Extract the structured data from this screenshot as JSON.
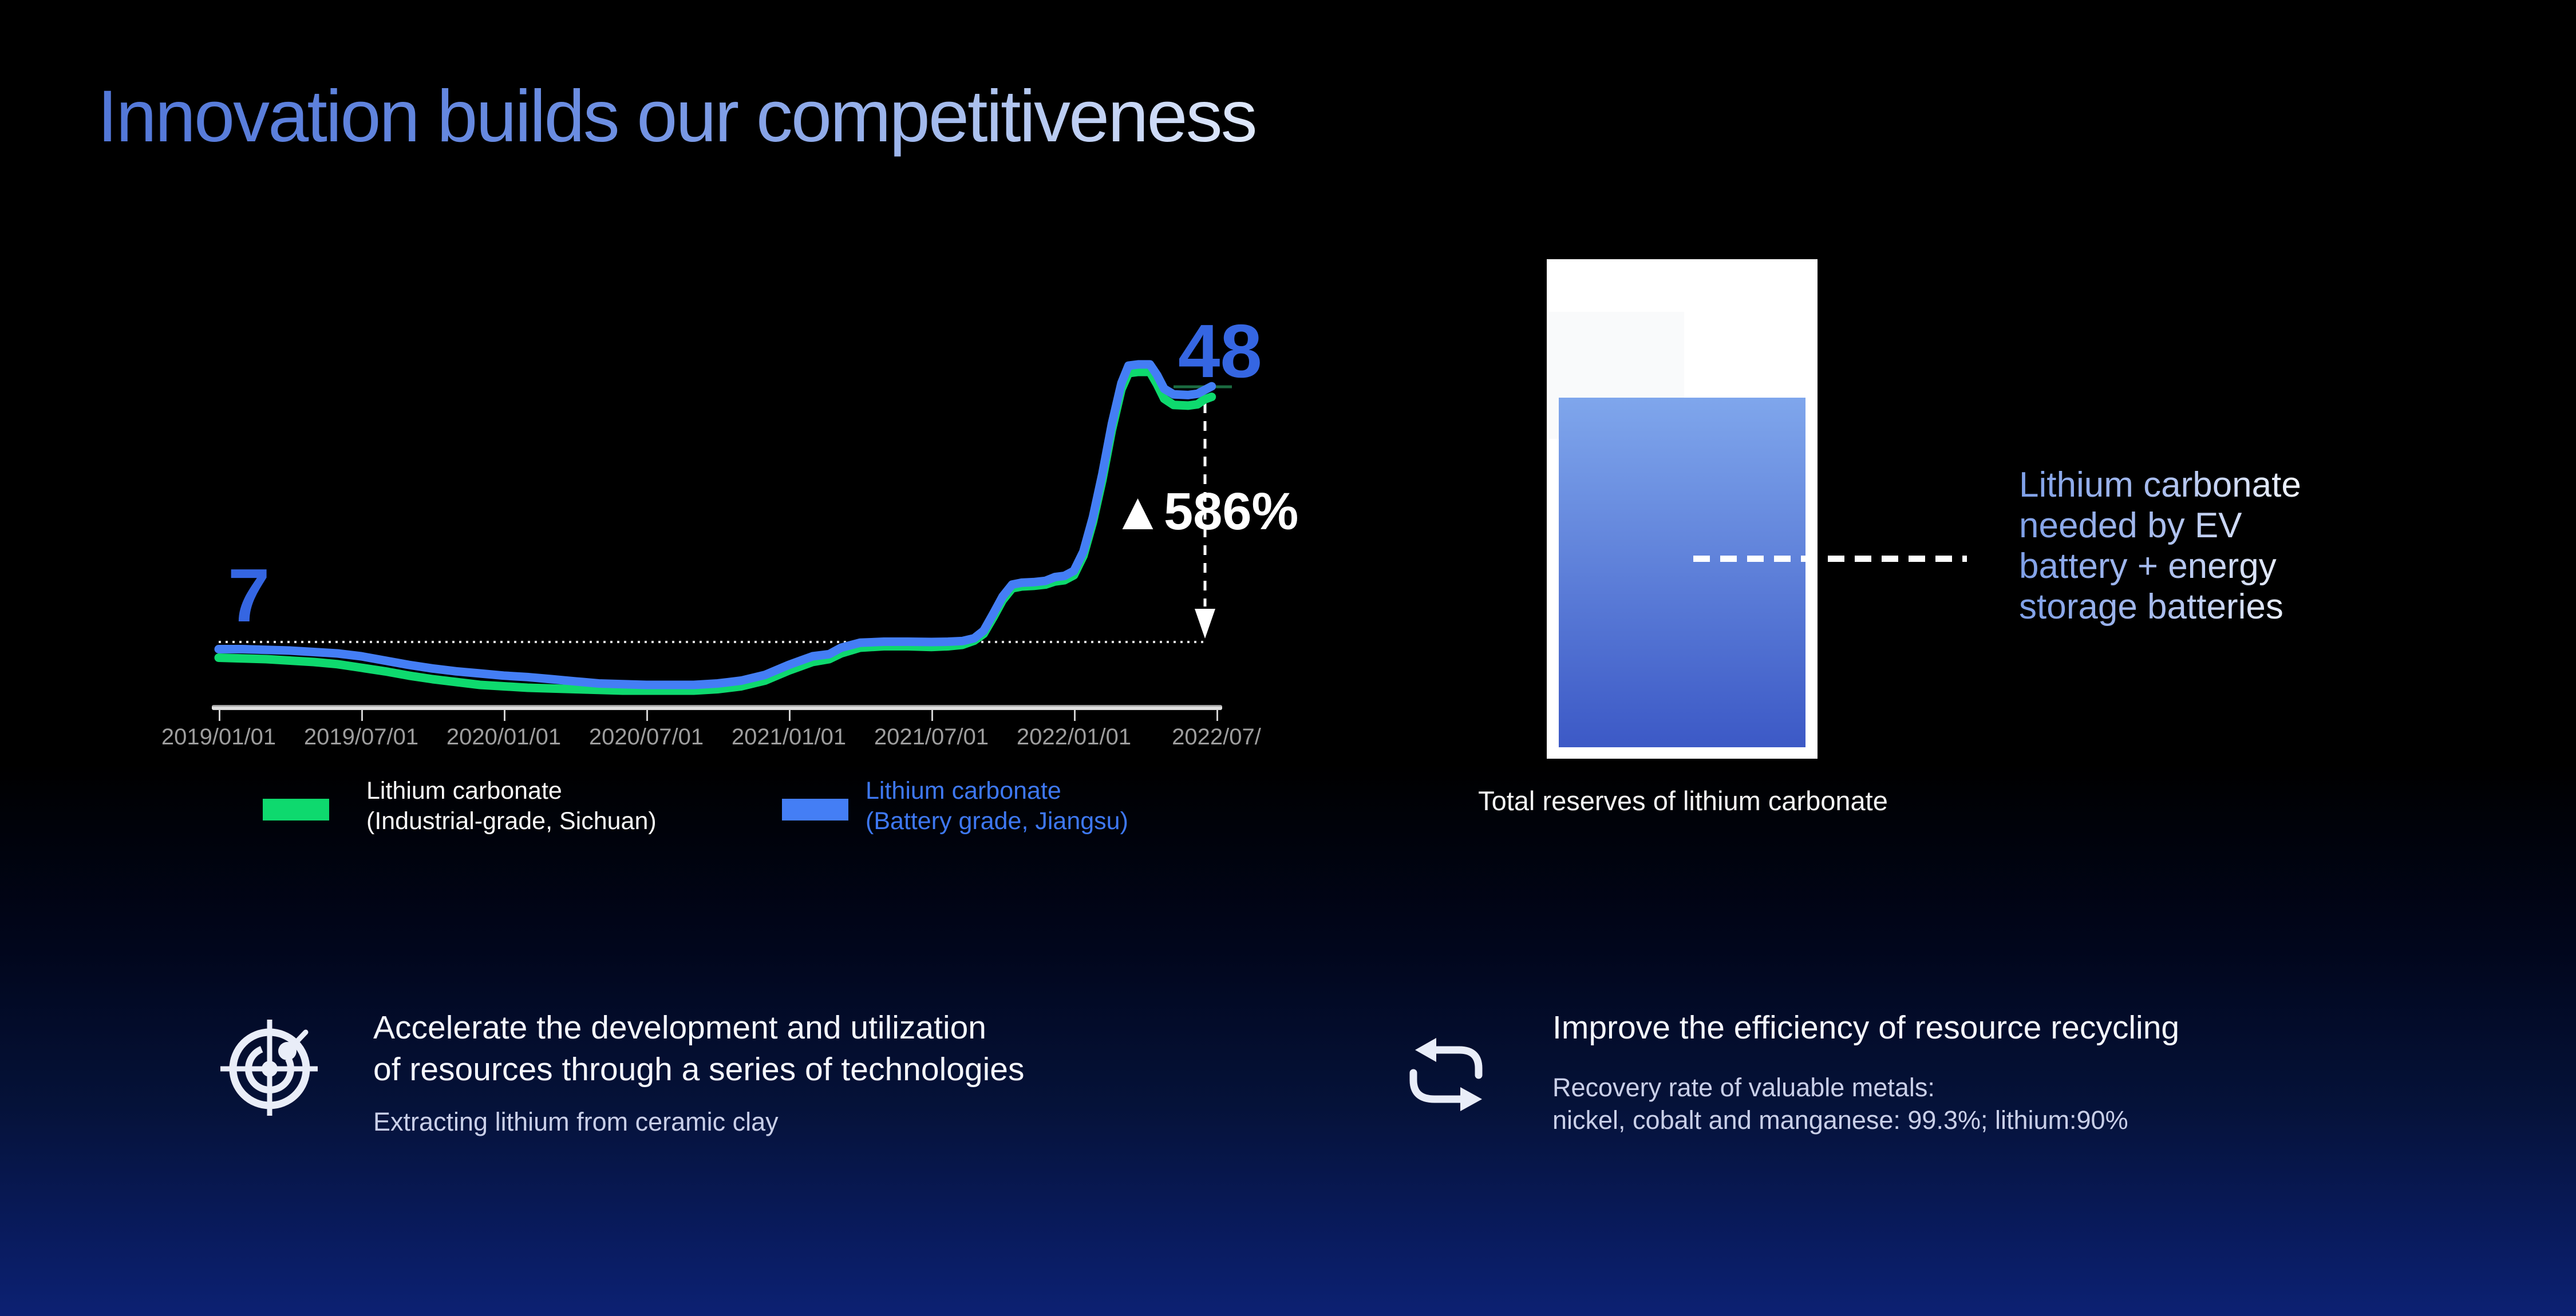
{
  "slide": {
    "title": "Innovation builds our competitiveness"
  },
  "chart_data": {
    "type": "line",
    "start_label": "7",
    "end_label": "48",
    "change_label": "▲586%",
    "baseline_value": 7,
    "end_value": 48,
    "x_tick_labels": [
      "2019/01/01",
      "2019/07/01",
      "2020/01/01",
      "2020/07/01",
      "2021/01/01",
      "2021/07/01",
      "2022/01/01",
      "2022/07/"
    ],
    "x_unit_months_from_2019_01": true,
    "grid": "single dotted baseline at value 7",
    "legend_position": "below chart",
    "series": [
      {
        "name": "Lithium carbonate (Industrial-grade, Sichuan)",
        "color": "#0ed96e",
        "points": [
          [
            0,
            5.9
          ],
          [
            1,
            5.85
          ],
          [
            2,
            5.8
          ],
          [
            3,
            5.7
          ],
          [
            4,
            5.6
          ],
          [
            5,
            5.45
          ],
          [
            6,
            5.2
          ],
          [
            7,
            4.95
          ],
          [
            8,
            4.65
          ],
          [
            9,
            4.4
          ],
          [
            10,
            4.2
          ],
          [
            11,
            4.0
          ],
          [
            12,
            3.9
          ],
          [
            13,
            3.8
          ],
          [
            14,
            3.75
          ],
          [
            15,
            3.7
          ],
          [
            16,
            3.65
          ],
          [
            17,
            3.6
          ],
          [
            18,
            3.6
          ],
          [
            19,
            3.6
          ],
          [
            20,
            3.6
          ],
          [
            21,
            3.7
          ],
          [
            22,
            3.9
          ],
          [
            23,
            4.3
          ],
          [
            24,
            5.0
          ],
          [
            25,
            5.6
          ],
          [
            25.7,
            5.8
          ],
          [
            26.2,
            6.2
          ],
          [
            27,
            6.6
          ],
          [
            28,
            6.7
          ],
          [
            29,
            6.7
          ],
          [
            30,
            6.65
          ],
          [
            30.7,
            6.7
          ],
          [
            31.3,
            6.8
          ],
          [
            31.8,
            7.2
          ],
          [
            32.2,
            8.3
          ],
          [
            32.6,
            10.9
          ],
          [
            33,
            13.7
          ],
          [
            33.4,
            15.6
          ],
          [
            33.8,
            15.9
          ],
          [
            34.3,
            16.0
          ],
          [
            34.8,
            16.2
          ],
          [
            35.2,
            16.7
          ],
          [
            35.6,
            16.9
          ],
          [
            36,
            17.7
          ],
          [
            36.4,
            20.8
          ],
          [
            36.8,
            26.2
          ],
          [
            37.2,
            33
          ],
          [
            37.6,
            41
          ],
          [
            38,
            47.5
          ],
          [
            38.3,
            50.1
          ],
          [
            38.7,
            50.3
          ],
          [
            39.2,
            50.3
          ],
          [
            39.5,
            48.3
          ],
          [
            39.8,
            46.0
          ],
          [
            40.2,
            45.0
          ],
          [
            40.8,
            44.9
          ],
          [
            41.2,
            45.1
          ],
          [
            41.5,
            45.9
          ],
          [
            41.8,
            46.3
          ]
        ]
      },
      {
        "name": "Lithium carbonate (Battery grade, Jiangsu)",
        "color": "#447ef5",
        "points": [
          [
            0,
            6.5
          ],
          [
            1,
            6.5
          ],
          [
            2,
            6.45
          ],
          [
            3,
            6.4
          ],
          [
            4,
            6.3
          ],
          [
            5,
            6.2
          ],
          [
            6,
            6.0
          ],
          [
            7,
            5.7
          ],
          [
            8,
            5.4
          ],
          [
            9,
            5.15
          ],
          [
            10,
            4.95
          ],
          [
            11,
            4.8
          ],
          [
            12,
            4.65
          ],
          [
            13,
            4.55
          ],
          [
            14,
            4.4
          ],
          [
            15,
            4.25
          ],
          [
            16,
            4.1
          ],
          [
            17,
            4.05
          ],
          [
            18,
            4.0
          ],
          [
            19,
            4.0
          ],
          [
            20,
            4.0
          ],
          [
            21,
            4.1
          ],
          [
            22,
            4.3
          ],
          [
            23,
            4.7
          ],
          [
            24,
            5.4
          ],
          [
            25,
            6.0
          ],
          [
            25.7,
            6.15
          ],
          [
            26.2,
            6.6
          ],
          [
            27,
            6.95
          ],
          [
            28,
            7.05
          ],
          [
            29,
            7.05
          ],
          [
            30,
            7.0
          ],
          [
            30.7,
            7.05
          ],
          [
            31.3,
            7.15
          ],
          [
            31.8,
            7.6
          ],
          [
            32.2,
            8.8
          ],
          [
            32.6,
            11.5
          ],
          [
            33,
            14.3
          ],
          [
            33.4,
            16.2
          ],
          [
            33.8,
            16.5
          ],
          [
            34.3,
            16.6
          ],
          [
            34.8,
            16.8
          ],
          [
            35.2,
            17.4
          ],
          [
            35.6,
            17.6
          ],
          [
            36,
            18.4
          ],
          [
            36.4,
            21.5
          ],
          [
            36.8,
            27
          ],
          [
            37.2,
            34
          ],
          [
            37.6,
            42
          ],
          [
            38,
            48.5
          ],
          [
            38.3,
            51.3
          ],
          [
            38.7,
            51.5
          ],
          [
            39.2,
            51.5
          ],
          [
            39.5,
            49.8
          ],
          [
            39.8,
            47.6
          ],
          [
            40.2,
            46.7
          ],
          [
            40.8,
            46.6
          ],
          [
            41.2,
            46.8
          ],
          [
            41.5,
            47.4
          ],
          [
            41.8,
            48
          ]
        ]
      }
    ],
    "legend": [
      {
        "label_line1": "Lithium carbonate",
        "label_line2": "(Industrial-grade, Sichuan)",
        "swatch_color": "#0ed96e",
        "text_color": "#fafafa"
      },
      {
        "label_line1": "Lithium carbonate",
        "label_line2": "(Battery grade, Jiangsu)",
        "swatch_color": "#447ef5",
        "text_color": "#3e78f2"
      }
    ]
  },
  "tank": {
    "caption": "Total reserves of lithium carbonate",
    "note": [
      "Lithium carbonate",
      "needed by EV",
      "battery + energy",
      "storage batteries"
    ],
    "fill_top_color": "#7fa6ec",
    "fill_bottom_color": "#3c59c6"
  },
  "features": [
    {
      "icon": "radar-target-icon",
      "heading": [
        "Accelerate the development and utilization",
        "of resources through a series of technologies"
      ],
      "sub": [
        "Extracting lithium from ceramic clay"
      ]
    },
    {
      "icon": "recycle-arrows-icon",
      "heading": [
        "Improve the efficiency of resource recycling"
      ],
      "sub": [
        "Recovery rate of valuable metals:",
        "nickel, cobalt and  manganese: 99.3%; lithium:90%"
      ]
    }
  ]
}
